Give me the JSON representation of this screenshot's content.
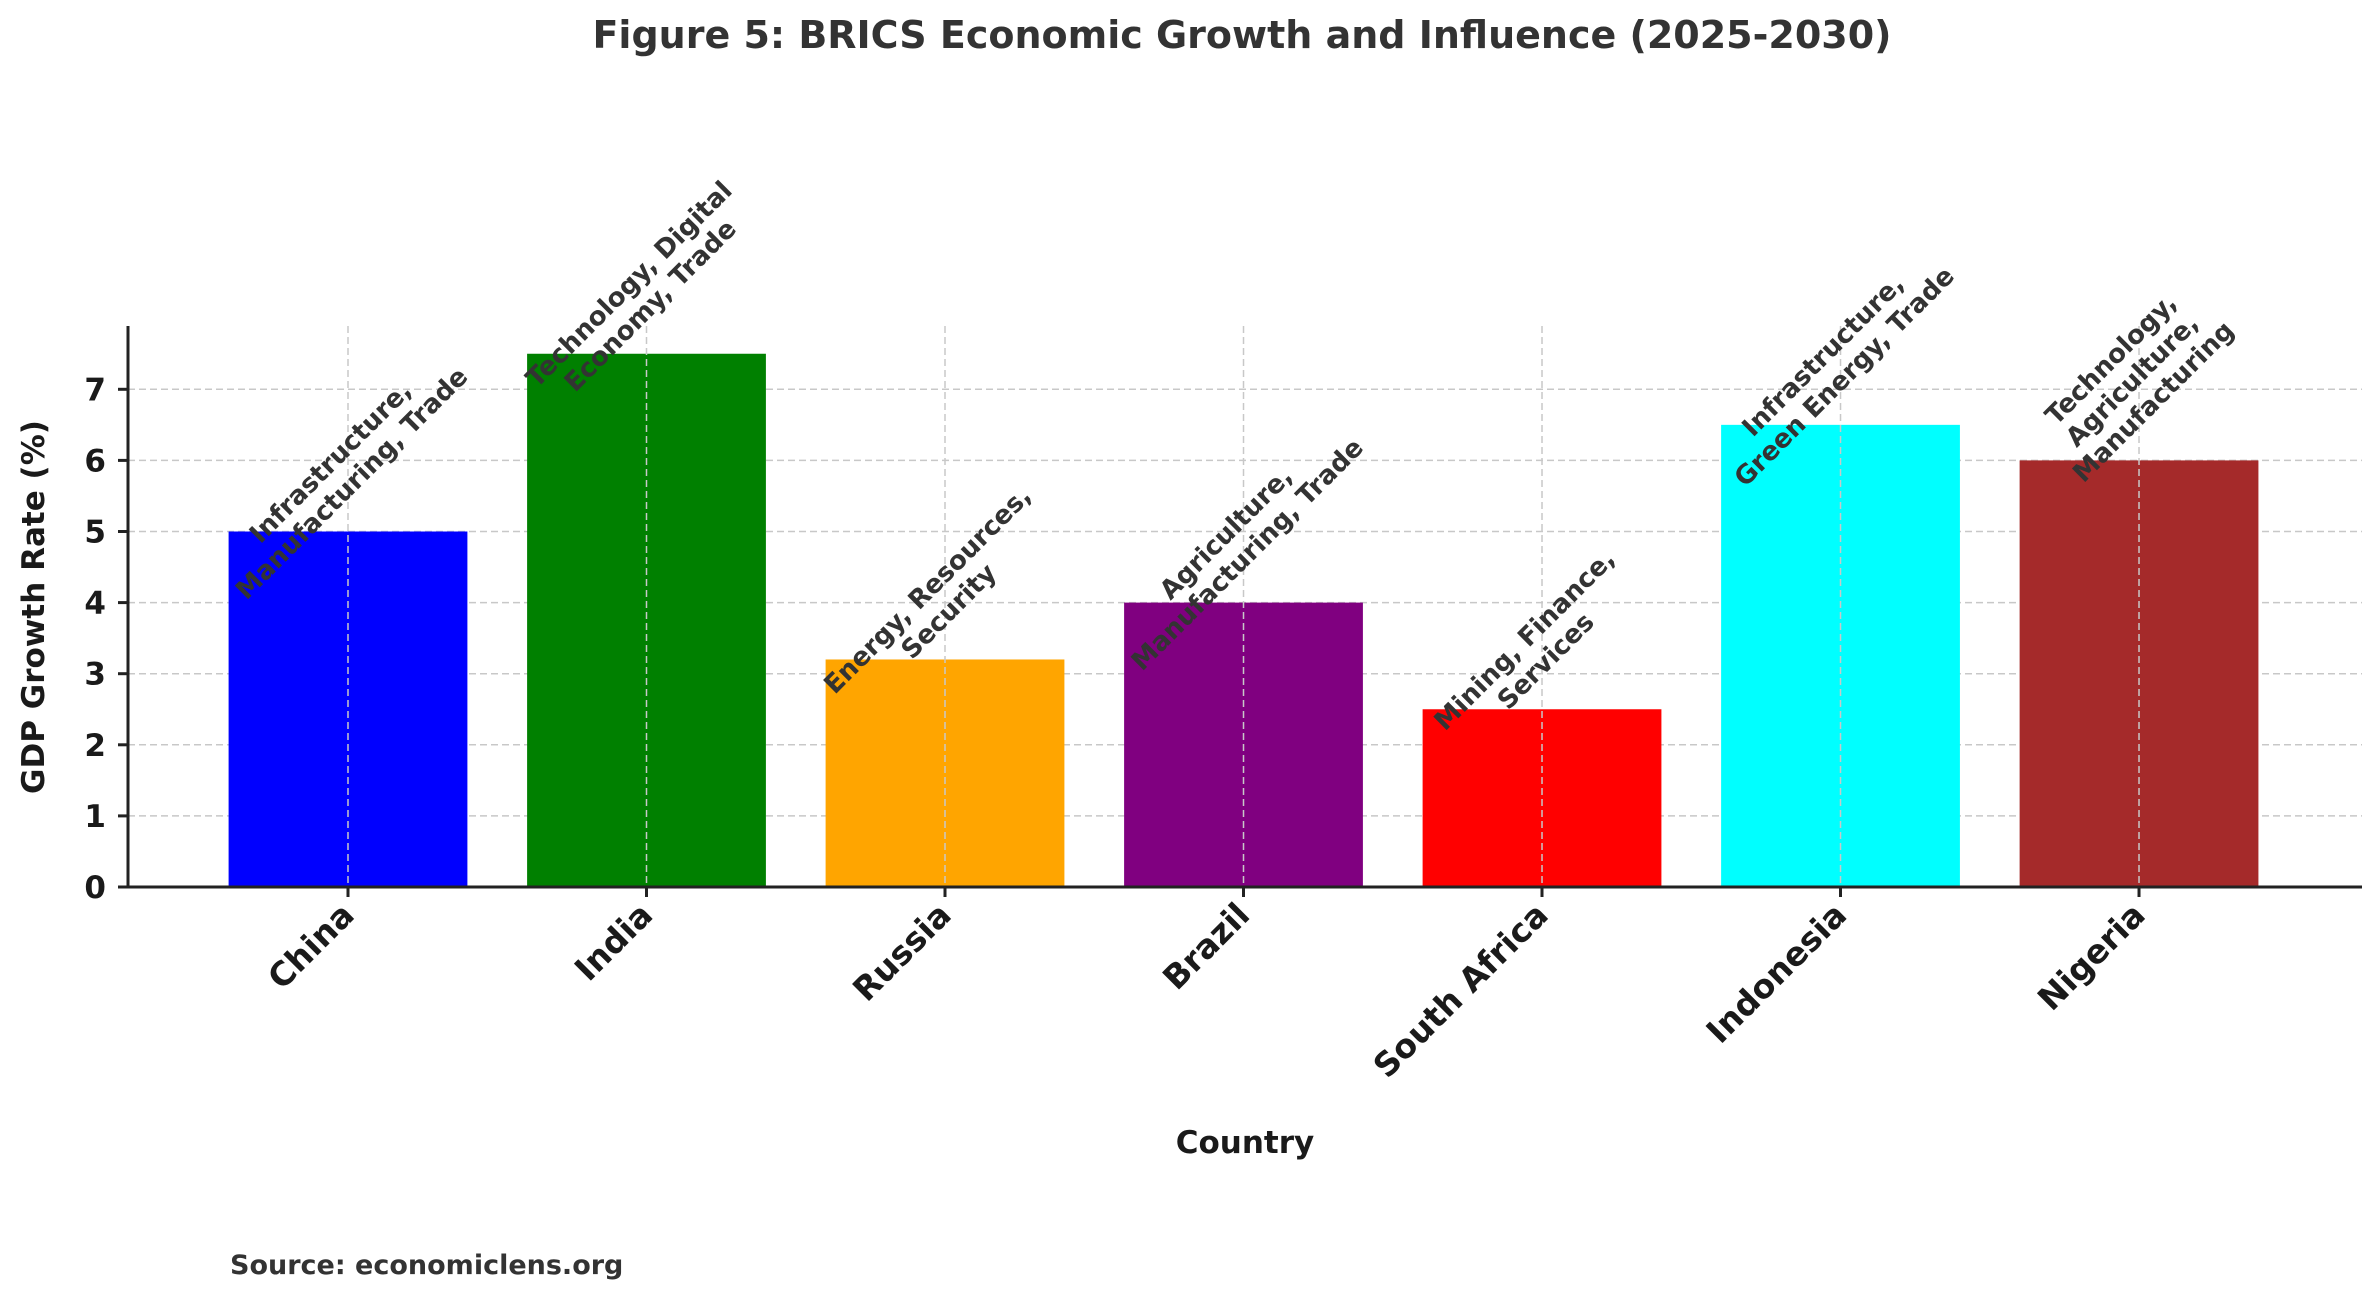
{
  "chart_data": {
    "type": "bar",
    "title": "Figure 5: BRICS Economic Growth and Influence (2025-2030)",
    "xlabel": "Country",
    "ylabel": "GDP Growth Rate (%)",
    "ylim": [
      0,
      7.89
    ],
    "yticks": [
      0,
      1,
      2,
      3,
      4,
      5,
      6,
      7
    ],
    "grid": true,
    "legend": null,
    "categories": [
      "China",
      "India",
      "Russia",
      "Brazil",
      "South Africa",
      "Indonesia",
      "Nigeria"
    ],
    "values": [
      5.0,
      7.5,
      3.2,
      4.0,
      2.5,
      6.5,
      6.0
    ],
    "colors": [
      "#0000ff",
      "#008000",
      "#ffa500",
      "#800080",
      "#ff0000",
      "#00ffff",
      "#a52a2a"
    ],
    "annotations": [
      [
        "Infrastructure,",
        "Manufacturing, Trade"
      ],
      [
        "Technology, Digital",
        "Economy, Trade"
      ],
      [
        "Energy, Resources,",
        "Security"
      ],
      [
        "Agriculture,",
        "Manufacturing, Trade"
      ],
      [
        "Mining, Finance,",
        "Services"
      ],
      [
        "Infrastructure,",
        "Green Energy, Trade"
      ],
      [
        "Technology,",
        "Agriculture,",
        "Manufacturing"
      ]
    ],
    "source": "Source: economiclens.org"
  }
}
